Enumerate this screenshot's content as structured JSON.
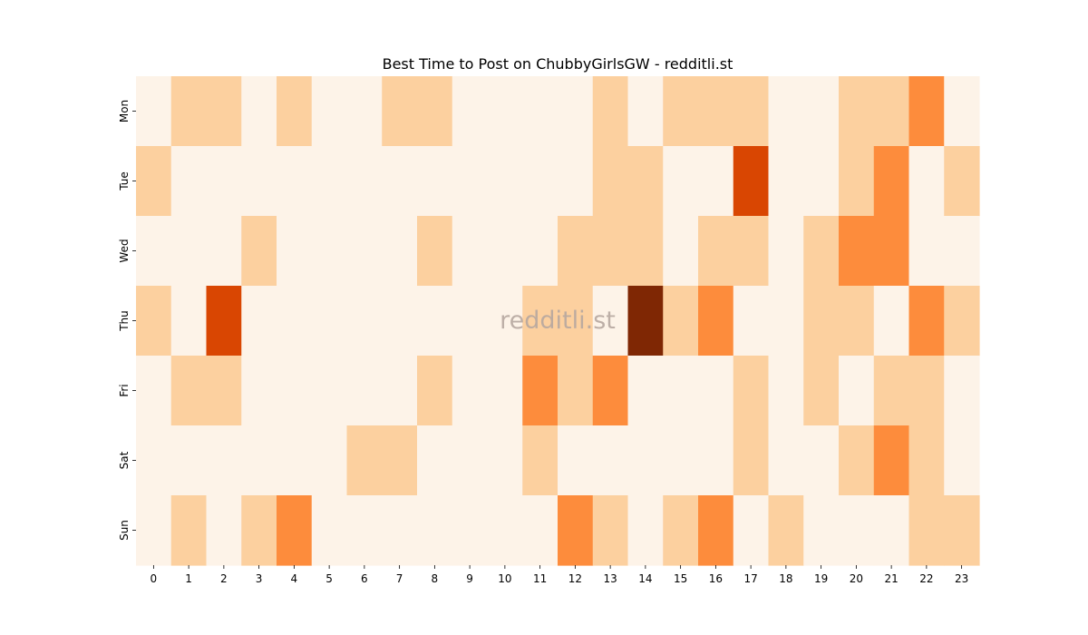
{
  "chart_data": {
    "type": "heatmap",
    "title": "Best Time to Post on ChubbyGirlsGW - redditli.st",
    "watermark": "redditli.st",
    "x_categories": [
      "0",
      "1",
      "2",
      "3",
      "4",
      "5",
      "6",
      "7",
      "8",
      "9",
      "10",
      "11",
      "12",
      "13",
      "14",
      "15",
      "16",
      "17",
      "18",
      "19",
      "20",
      "21",
      "22",
      "23"
    ],
    "y_categories": [
      "Mon",
      "Tue",
      "Wed",
      "Thu",
      "Fri",
      "Sat",
      "Sun"
    ],
    "values": [
      [
        0,
        1,
        1,
        0,
        1,
        0,
        0,
        1,
        1,
        0,
        0,
        0,
        0,
        1,
        0,
        1,
        1,
        1,
        0,
        0,
        1,
        1,
        2,
        0
      ],
      [
        1,
        0,
        0,
        0,
        0,
        0,
        0,
        0,
        0,
        0,
        0,
        0,
        0,
        1,
        1,
        0,
        0,
        3,
        0,
        0,
        1,
        2,
        0,
        1
      ],
      [
        0,
        0,
        0,
        1,
        0,
        0,
        0,
        0,
        1,
        0,
        0,
        0,
        1,
        1,
        1,
        0,
        1,
        1,
        0,
        1,
        2,
        2,
        0,
        0
      ],
      [
        1,
        0,
        3,
        0,
        0,
        0,
        0,
        0,
        0,
        0,
        0,
        1,
        1,
        0,
        4,
        1,
        2,
        0,
        0,
        1,
        1,
        0,
        2,
        1
      ],
      [
        0,
        1,
        1,
        0,
        0,
        0,
        0,
        0,
        1,
        0,
        0,
        2,
        1,
        2,
        0,
        0,
        0,
        1,
        0,
        1,
        0,
        1,
        1,
        0
      ],
      [
        0,
        0,
        0,
        0,
        0,
        0,
        1,
        1,
        0,
        0,
        0,
        1,
        0,
        0,
        0,
        0,
        0,
        1,
        0,
        0,
        1,
        2,
        1,
        0
      ],
      [
        0,
        1,
        0,
        1,
        2,
        0,
        0,
        0,
        0,
        0,
        0,
        0,
        2,
        1,
        0,
        1,
        2,
        0,
        1,
        0,
        0,
        0,
        1,
        1
      ]
    ],
    "color_scale": [
      "#fdf3e8",
      "#fcd09f",
      "#fd8c3c",
      "#d94602",
      "#7f2704"
    ],
    "colorbar": false
  }
}
